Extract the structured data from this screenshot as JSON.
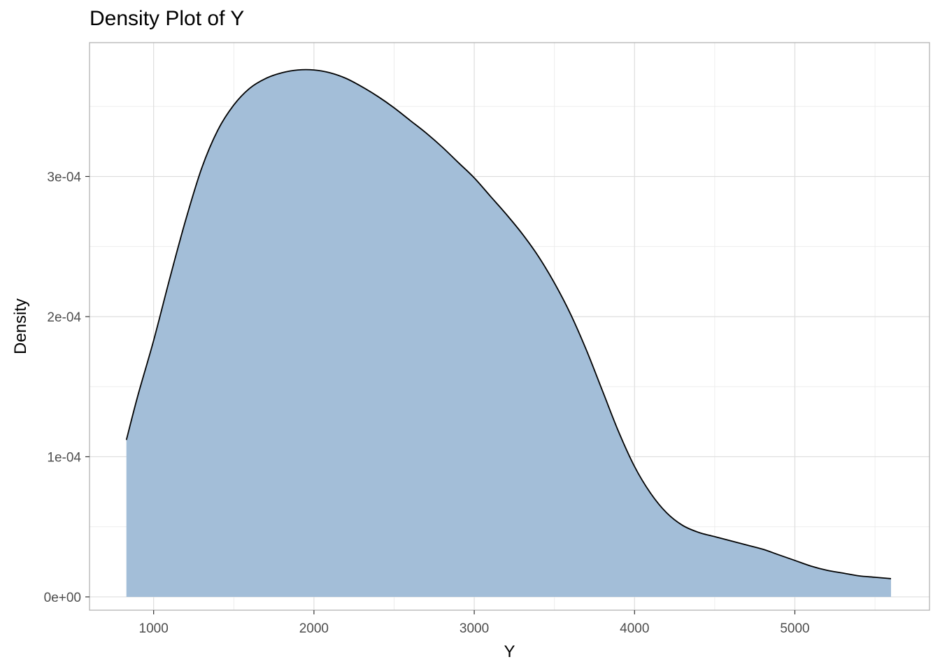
{
  "chart_data": {
    "type": "area",
    "title": "Density Plot of Y",
    "xlabel": "Y",
    "ylabel": "Density",
    "xlim": [
      600,
      5840
    ],
    "ylim": [
      -9.5e-06,
      0.0003955
    ],
    "xticks": [
      1000,
      2000,
      3000,
      4000,
      5000
    ],
    "xtick_labels": [
      "1000",
      "2000",
      "3000",
      "4000",
      "5000"
    ],
    "yticks": [
      0,
      0.0001,
      0.0002,
      0.0003
    ],
    "ytick_labels": [
      "0e+00",
      "1e-04",
      "2e-04",
      "3e-04"
    ],
    "grid": true,
    "fill_color": "#a3bed8",
    "line_color": "#000000",
    "series": [
      {
        "x": [
          830,
          900,
          1000,
          1100,
          1200,
          1300,
          1400,
          1500,
          1600,
          1700,
          1800,
          1900,
          2000,
          2100,
          2200,
          2300,
          2400,
          2500,
          2600,
          2700,
          2800,
          2900,
          3000,
          3100,
          3200,
          3300,
          3400,
          3500,
          3600,
          3700,
          3800,
          3900,
          4000,
          4100,
          4200,
          4300,
          4400,
          4500,
          4600,
          4700,
          4800,
          4900,
          5000,
          5100,
          5200,
          5300,
          5400,
          5500,
          5600
        ],
        "y": [
          0.000112,
          0.000143,
          0.000183,
          0.000227,
          0.000269,
          0.000306,
          0.000333,
          0.000351,
          0.000363,
          0.00037,
          0.000374,
          0.000376,
          0.000376,
          0.000374,
          0.00037,
          0.000364,
          0.000357,
          0.000349,
          0.00034,
          0.000331,
          0.000321,
          0.00031,
          0.000299,
          0.000286,
          0.000273,
          0.000259,
          0.000243,
          0.000224,
          0.000202,
          0.000176,
          0.000147,
          0.000118,
          9.3e-05,
          7.4e-05,
          6e-05,
          5.1e-05,
          4.6e-05,
          4.3e-05,
          4e-05,
          3.7e-05,
          3.4e-05,
          3e-05,
          2.6e-05,
          2.2e-05,
          1.9e-05,
          1.7e-05,
          1.5e-05,
          1.4e-05,
          1.3e-05
        ]
      }
    ]
  }
}
